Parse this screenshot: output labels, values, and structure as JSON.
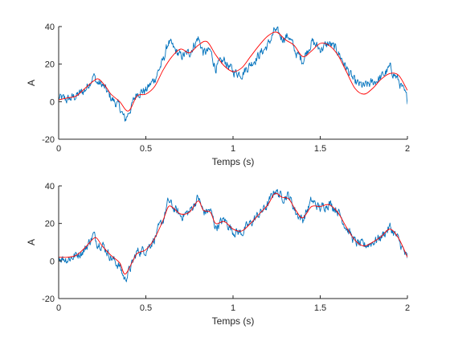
{
  "chart_data": [
    {
      "type": "line",
      "title": "",
      "xlabel": "Temps (s)",
      "ylabel": "A",
      "xlim": [
        0,
        2
      ],
      "ylim": [
        -20,
        40
      ],
      "xticks": [
        0,
        0.5,
        1,
        1.5,
        2
      ],
      "yticks": [
        -20,
        0,
        20,
        40
      ],
      "grid": false,
      "series": [
        {
          "color": "#0072BD",
          "style": "noisy",
          "x": [
            0,
            0.05,
            0.1,
            0.15,
            0.2,
            0.22,
            0.25,
            0.3,
            0.35,
            0.38,
            0.42,
            0.45,
            0.5,
            0.55,
            0.6,
            0.63,
            0.66,
            0.7,
            0.75,
            0.8,
            0.83,
            0.87,
            0.9,
            0.95,
            1.0,
            1.05,
            1.1,
            1.15,
            1.2,
            1.24,
            1.28,
            1.32,
            1.36,
            1.4,
            1.45,
            1.5,
            1.55,
            1.6,
            1.65,
            1.7,
            1.75,
            1.8,
            1.85,
            1.9,
            1.95,
            2.0
          ],
          "y": [
            2,
            1,
            3,
            6,
            14,
            10,
            9,
            2,
            -3,
            -10,
            -2,
            5,
            6,
            12,
            22,
            32,
            28,
            24,
            26,
            34,
            26,
            27,
            18,
            22,
            16,
            15,
            20,
            25,
            30,
            38,
            34,
            35,
            26,
            22,
            32,
            28,
            31,
            27,
            18,
            10,
            8,
            10,
            13,
            18,
            11,
            1
          ]
        },
        {
          "color": "#FF0000",
          "style": "smooth",
          "x": [
            0,
            0.05,
            0.1,
            0.15,
            0.2,
            0.23,
            0.27,
            0.3,
            0.35,
            0.4,
            0.45,
            0.5,
            0.55,
            0.6,
            0.65,
            0.7,
            0.75,
            0.8,
            0.85,
            0.9,
            0.95,
            1.0,
            1.05,
            1.1,
            1.15,
            1.2,
            1.25,
            1.3,
            1.35,
            1.4,
            1.45,
            1.5,
            1.55,
            1.6,
            1.65,
            1.7,
            1.75,
            1.8,
            1.85,
            1.9,
            1.95,
            2.0
          ],
          "y": [
            1,
            2,
            3,
            7,
            11,
            12,
            8,
            4,
            0,
            -5,
            3,
            4,
            8,
            17,
            24,
            28,
            26,
            30,
            32,
            25,
            19,
            16,
            18,
            24,
            30,
            35,
            37,
            33,
            30,
            24,
            27,
            31,
            30,
            25,
            16,
            7,
            4,
            7,
            12,
            15,
            14,
            6
          ]
        }
      ]
    },
    {
      "type": "line",
      "title": "",
      "xlabel": "Temps (s)",
      "ylabel": "A",
      "xlim": [
        0,
        2
      ],
      "ylim": [
        -20,
        40
      ],
      "xticks": [
        0,
        0.5,
        1,
        1.5,
        2
      ],
      "yticks": [
        -20,
        0,
        20,
        40
      ],
      "grid": false,
      "series": [
        {
          "color": "#0072BD",
          "style": "noisy",
          "x": [
            0,
            0.05,
            0.1,
            0.15,
            0.2,
            0.22,
            0.25,
            0.3,
            0.35,
            0.38,
            0.42,
            0.45,
            0.5,
            0.55,
            0.6,
            0.63,
            0.66,
            0.7,
            0.75,
            0.8,
            0.83,
            0.87,
            0.9,
            0.95,
            1.0,
            1.05,
            1.1,
            1.15,
            1.2,
            1.24,
            1.28,
            1.32,
            1.36,
            1.4,
            1.45,
            1.5,
            1.55,
            1.6,
            1.65,
            1.7,
            1.75,
            1.8,
            1.85,
            1.9,
            1.95,
            2.0
          ],
          "y": [
            2,
            1,
            3,
            6,
            14,
            10,
            9,
            2,
            -3,
            -10,
            -2,
            5,
            6,
            12,
            22,
            32,
            28,
            24,
            26,
            34,
            26,
            27,
            18,
            22,
            16,
            15,
            20,
            25,
            30,
            38,
            34,
            35,
            26,
            22,
            32,
            28,
            31,
            27,
            18,
            10,
            8,
            10,
            13,
            18,
            11,
            1
          ]
        },
        {
          "color": "#FF0000",
          "style": "smooth",
          "x": [
            0,
            0.05,
            0.1,
            0.15,
            0.2,
            0.22,
            0.25,
            0.3,
            0.35,
            0.38,
            0.42,
            0.45,
            0.5,
            0.55,
            0.6,
            0.63,
            0.66,
            0.7,
            0.75,
            0.8,
            0.83,
            0.87,
            0.9,
            0.95,
            1.0,
            1.05,
            1.1,
            1.15,
            1.2,
            1.24,
            1.28,
            1.32,
            1.36,
            1.4,
            1.45,
            1.5,
            1.55,
            1.6,
            1.65,
            1.7,
            1.75,
            1.8,
            1.85,
            1.9,
            1.95,
            2.0
          ],
          "y": [
            2,
            2,
            3,
            7,
            12,
            12,
            8,
            3,
            -1,
            -7,
            -1,
            4,
            6,
            12,
            22,
            29,
            28,
            25,
            26,
            32,
            27,
            26,
            20,
            21,
            17,
            16,
            20,
            25,
            30,
            36,
            34,
            33,
            27,
            23,
            29,
            29,
            30,
            26,
            18,
            11,
            8,
            10,
            13,
            17,
            12,
            2
          ]
        }
      ]
    }
  ]
}
